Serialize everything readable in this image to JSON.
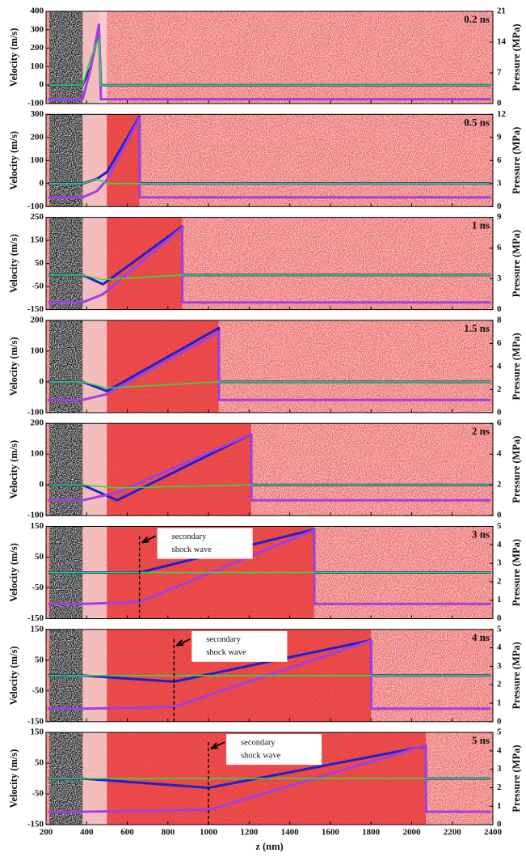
{
  "chart_data": [
    {
      "type": "line",
      "label": "0.2 ns",
      "ylabel": "Velocity (m/s)",
      "y2label": "Pressure (MPa)",
      "xlim": [
        200,
        2400
      ],
      "xticks": [
        200,
        400,
        600,
        800,
        1000,
        1200,
        1400,
        1600,
        1800,
        2000,
        2200,
        2400
      ],
      "ylim": [
        -100,
        400
      ],
      "yticks": [
        -100,
        0,
        100,
        200,
        300,
        400
      ],
      "y2lim": [
        0,
        21
      ],
      "y2ticks": [
        0,
        7,
        14,
        21
      ],
      "x": [
        210,
        380,
        420,
        460,
        470,
        2390
      ],
      "series": [
        {
          "color": "#2020d0",
          "values": [
            0,
            0,
            100,
            300,
            0,
            0
          ]
        },
        {
          "color": "#a040e0",
          "axis": "y2",
          "values": [
            1,
            1,
            8,
            18,
            1,
            1
          ]
        },
        {
          "color": "#33dd33",
          "values": [
            0,
            0,
            150,
            250,
            0,
            0
          ]
        }
      ]
    },
    {
      "type": "line",
      "label": "0.5 ns",
      "ylabel": "Velocity (m/s)",
      "y2label": "Pressure (MPa)",
      "xlim": [
        200,
        2400
      ],
      "xticks": [
        200,
        400,
        600,
        800,
        1000,
        1200,
        1400,
        1600,
        1800,
        2000,
        2200,
        2400
      ],
      "ylim": [
        -100,
        300
      ],
      "yticks": [
        -100,
        0,
        100,
        200,
        300
      ],
      "y2lim": [
        0,
        12
      ],
      "y2ticks": [
        0,
        3,
        6,
        9,
        12
      ],
      "x": [
        210,
        380,
        450,
        500,
        660,
        661,
        2390
      ],
      "series": [
        {
          "color": "#2020d0",
          "values": [
            0,
            0,
            20,
            50,
            290,
            0,
            0
          ]
        },
        {
          "color": "#a040e0",
          "axis": "y2",
          "values": [
            1.2,
            1.2,
            2,
            3.5,
            11.5,
            1.2,
            1.2
          ]
        },
        {
          "color": "#33dd33",
          "values": [
            0,
            0,
            20,
            0,
            0,
            0,
            0
          ]
        }
      ]
    },
    {
      "type": "line",
      "label": "1 ns",
      "ylabel": "Velocity (m/s)",
      "y2label": "Pressure (MPa)",
      "xlim": [
        200,
        2400
      ],
      "xticks": [
        200,
        400,
        600,
        800,
        1000,
        1200,
        1400,
        1600,
        1800,
        2000,
        2200,
        2400
      ],
      "ylim": [
        -150,
        250
      ],
      "yticks": [
        -150,
        -50,
        50,
        150,
        250
      ],
      "y2lim": [
        0,
        9
      ],
      "y2ticks": [
        0,
        3,
        6,
        9
      ],
      "x": [
        210,
        380,
        480,
        870,
        871,
        2390
      ],
      "series": [
        {
          "color": "#2020d0",
          "values": [
            0,
            0,
            -40,
            210,
            0,
            0
          ]
        },
        {
          "color": "#a040e0",
          "axis": "y2",
          "values": [
            0.7,
            0.7,
            1.5,
            8,
            0.7,
            0.7
          ]
        },
        {
          "color": "#33dd33",
          "values": [
            0,
            0,
            -20,
            0,
            0,
            0
          ]
        }
      ]
    },
    {
      "type": "line",
      "label": "1.5 ns",
      "ylabel": "Velocity (m/s)",
      "y2label": "Pressure (MPa)",
      "xlim": [
        200,
        2400
      ],
      "xticks": [
        200,
        400,
        600,
        800,
        1000,
        1200,
        1400,
        1600,
        1800,
        2000,
        2200,
        2400
      ],
      "ylim": [
        -100,
        200
      ],
      "yticks": [
        -100,
        0,
        100,
        200
      ],
      "y2lim": [
        0,
        8
      ],
      "y2ticks": [
        0,
        2,
        4,
        6,
        8
      ],
      "x": [
        210,
        380,
        500,
        1050,
        1051,
        2390
      ],
      "series": [
        {
          "color": "#2020d0",
          "values": [
            0,
            0,
            -30,
            175,
            0,
            0
          ]
        },
        {
          "color": "#a040e0",
          "axis": "y2",
          "values": [
            1.1,
            1.1,
            1.6,
            7,
            1.1,
            1.1
          ]
        },
        {
          "color": "#33dd33",
          "values": [
            0,
            0,
            -20,
            0,
            0,
            0
          ]
        }
      ]
    },
    {
      "type": "line",
      "label": "2 ns",
      "ylabel": "Velocity (m/s)",
      "y2label": "Pressure (MPa)",
      "xlim": [
        200,
        2400
      ],
      "xticks": [
        200,
        400,
        600,
        800,
        1000,
        1200,
        1400,
        1600,
        1800,
        2000,
        2200,
        2400
      ],
      "ylim": [
        -100,
        200
      ],
      "yticks": [
        -100,
        0,
        100,
        200
      ],
      "y2lim": [
        0,
        6
      ],
      "y2ticks": [
        0,
        2,
        4,
        6
      ],
      "x": [
        210,
        380,
        550,
        1210,
        1211,
        2390
      ],
      "series": [
        {
          "color": "#2020d0",
          "values": [
            0,
            0,
            -50,
            165,
            0,
            0
          ]
        },
        {
          "color": "#a040e0",
          "axis": "y2",
          "values": [
            1,
            1,
            1.5,
            5.3,
            1,
            1
          ]
        },
        {
          "color": "#33dd33",
          "values": [
            0,
            0,
            -10,
            0,
            0,
            0
          ]
        }
      ]
    },
    {
      "type": "line",
      "label": "3 ns",
      "ylabel": "Velocity (m/s)",
      "y2label": "Pressure (MPa)",
      "xlim": [
        200,
        2400
      ],
      "xticks": [
        200,
        400,
        600,
        800,
        1000,
        1200,
        1400,
        1600,
        1800,
        2000,
        2200,
        2400
      ],
      "ylim": [
        -150,
        150
      ],
      "yticks": [
        -150,
        -50,
        50,
        150
      ],
      "y2lim": [
        0,
        5
      ],
      "y2ticks": [
        0,
        1,
        2,
        3,
        4,
        5
      ],
      "x": [
        210,
        380,
        660,
        1520,
        1521,
        2390
      ],
      "series": [
        {
          "color": "#2020d0",
          "values": [
            0,
            0,
            0,
            140,
            0,
            0
          ]
        },
        {
          "color": "#a040e0",
          "axis": "y2",
          "values": [
            0.8,
            0.8,
            0.9,
            4.8,
            0.8,
            0.8
          ]
        },
        {
          "color": "#33dd33",
          "values": [
            0,
            0,
            0,
            0,
            0,
            0
          ]
        }
      ],
      "annotation": {
        "lines": [
          "secondary",
          "shock wave"
        ],
        "x": 660
      }
    },
    {
      "type": "line",
      "label": "4 ns",
      "ylabel": "Velocity (m/s)",
      "y2label": "Pressure (MPa)",
      "xlim": [
        200,
        2400
      ],
      "xticks": [
        200,
        400,
        600,
        800,
        1000,
        1200,
        1400,
        1600,
        1800,
        2000,
        2200,
        2400
      ],
      "ylim": [
        -150,
        150
      ],
      "yticks": [
        -150,
        -50,
        50,
        150
      ],
      "y2lim": [
        0,
        5
      ],
      "y2ticks": [
        0,
        1,
        2,
        3,
        4,
        5
      ],
      "x": [
        210,
        380,
        830,
        1800,
        1801,
        2390
      ],
      "series": [
        {
          "color": "#2020d0",
          "values": [
            0,
            0,
            -20,
            115,
            0,
            0
          ]
        },
        {
          "color": "#a040e0",
          "axis": "y2",
          "values": [
            0.7,
            0.7,
            0.8,
            4.4,
            0.7,
            0.7
          ]
        },
        {
          "color": "#33dd33",
          "values": [
            0,
            0,
            0,
            0,
            0,
            0
          ]
        }
      ],
      "annotation": {
        "lines": [
          "secondary",
          "shock wave"
        ],
        "x": 830
      }
    },
    {
      "type": "line",
      "label": "5 ns",
      "ylabel": "Velocity (m/s)",
      "y2label": "Pressure (MPa)",
      "xlabel": "z (nm)",
      "xlim": [
        200,
        2400
      ],
      "xticks": [
        200,
        400,
        600,
        800,
        1000,
        1200,
        1400,
        1600,
        1800,
        2000,
        2200,
        2400
      ],
      "ylim": [
        -150,
        150
      ],
      "yticks": [
        -150,
        -50,
        50,
        150
      ],
      "y2lim": [
        0,
        5
      ],
      "y2ticks": [
        0,
        1,
        2,
        3,
        4,
        5
      ],
      "x": [
        210,
        380,
        1000,
        2070,
        2071,
        2390
      ],
      "series": [
        {
          "color": "#2020d0",
          "values": [
            0,
            0,
            -30,
            105,
            0,
            0
          ]
        },
        {
          "color": "#a040e0",
          "axis": "y2",
          "values": [
            0.7,
            0.7,
            0.8,
            4.3,
            0.7,
            0.7
          ]
        },
        {
          "color": "#33dd33",
          "values": [
            0,
            0,
            0,
            0,
            0,
            0
          ]
        }
      ],
      "annotation": {
        "lines": [
          "secondary",
          "shock wave"
        ],
        "x": 1000
      }
    }
  ]
}
